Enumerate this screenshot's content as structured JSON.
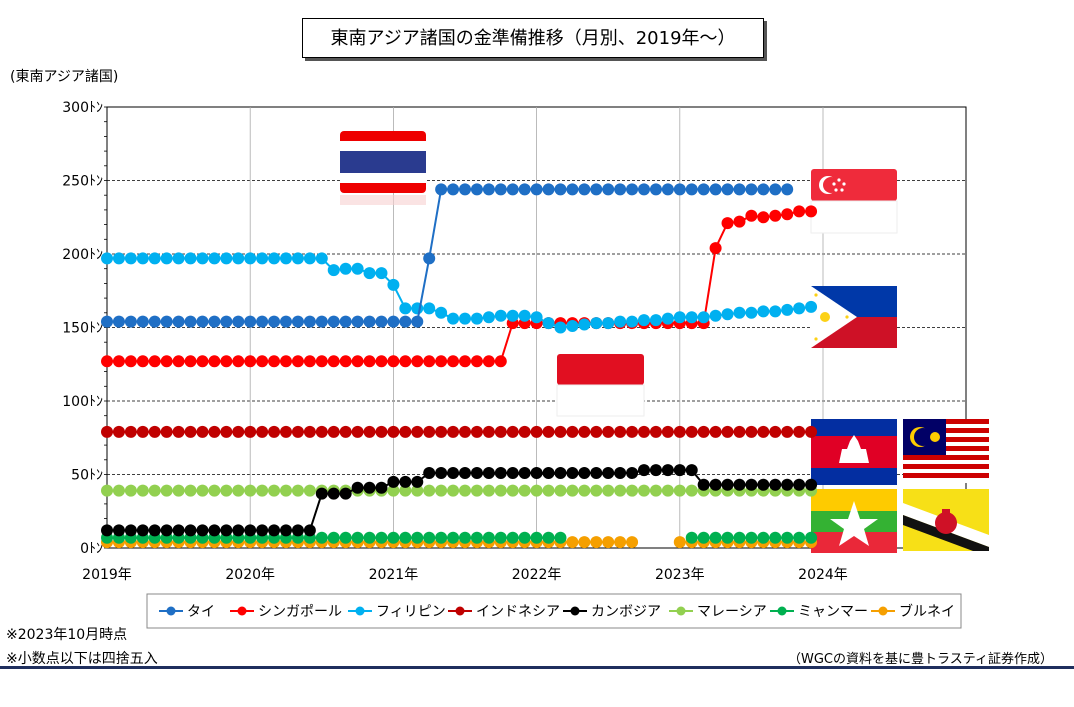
{
  "header": {
    "title": "東南アジア諸国の金準備推移（月別、2019年〜）"
  },
  "chart_data": {
    "type": "line",
    "ylabel": "(東南アジア諸国)",
    "yunit": "トン",
    "ylim": [
      0,
      300
    ],
    "yticks": [
      "0ﾄﾝ",
      "50ﾄﾝ",
      "100ﾄﾝ",
      "150ﾄﾝ",
      "200ﾄﾝ",
      "250ﾄﾝ",
      "300ﾄﾝ"
    ],
    "ytick_values": [
      0,
      50,
      100,
      150,
      200,
      250,
      300
    ],
    "xlim": [
      "2019-01",
      "2024-12"
    ],
    "xticks": [
      "2019年",
      "2020年",
      "2021年",
      "2022年",
      "2023年",
      "2024年"
    ],
    "x_start": "2019-01",
    "grid": "horizontal-dashed and vertical-solid",
    "legend_position": "bottom",
    "series": [
      {
        "name": "タイ",
        "color": "#1f6fc5",
        "segments": [
          [
            0,
            154,
            154,
            154
          ],
          [
            27,
            197,
            197
          ],
          [
            28,
            244,
            244,
            244
          ]
        ],
        "values": [
          154,
          154,
          154,
          154,
          154,
          154,
          154,
          154,
          154,
          154,
          154,
          154,
          154,
          154,
          154,
          154,
          154,
          154,
          154,
          154,
          154,
          154,
          154,
          154,
          154,
          154,
          154,
          197,
          244,
          244,
          244,
          244,
          244,
          244,
          244,
          244,
          244,
          244,
          244,
          244,
          244,
          244,
          244,
          244,
          244,
          244,
          244,
          244,
          244,
          244,
          244,
          244,
          244,
          244,
          244,
          244,
          244,
          244
        ]
      },
      {
        "name": "シンガポール",
        "color": "#ff0000",
        "values": [
          127,
          127,
          127,
          127,
          127,
          127,
          127,
          127,
          127,
          127,
          127,
          127,
          127,
          127,
          127,
          127,
          127,
          127,
          127,
          127,
          127,
          127,
          127,
          127,
          127,
          127,
          127,
          127,
          127,
          127,
          127,
          127,
          127,
          127,
          153,
          153,
          153,
          153,
          153,
          153,
          153,
          153,
          153,
          153,
          153,
          153,
          153,
          153,
          153,
          153,
          153,
          204,
          221,
          222,
          226,
          225,
          226,
          227,
          229,
          229
        ]
      },
      {
        "name": "フィリピン",
        "color": "#00b0f0",
        "values": [
          197,
          197,
          197,
          197,
          197,
          197,
          197,
          197,
          197,
          197,
          197,
          197,
          197,
          197,
          197,
          197,
          197,
          197,
          197,
          189,
          190,
          190,
          187,
          187,
          179,
          163,
          163,
          163,
          160,
          156,
          156,
          156,
          157,
          158,
          158,
          158,
          157,
          153,
          150,
          151,
          152,
          153,
          153,
          154,
          154,
          155,
          155,
          156,
          157,
          157,
          157,
          158,
          159,
          160,
          160,
          161,
          161,
          162,
          163,
          164
        ]
      },
      {
        "name": "インドネシア",
        "color": "#c00000",
        "values": [
          79,
          79,
          79,
          79,
          79,
          79,
          79,
          79,
          79,
          79,
          79,
          79,
          79,
          79,
          79,
          79,
          79,
          79,
          79,
          79,
          79,
          79,
          79,
          79,
          79,
          79,
          79,
          79,
          79,
          79,
          79,
          79,
          79,
          79,
          79,
          79,
          79,
          79,
          79,
          79,
          79,
          79,
          79,
          79,
          79,
          79,
          79,
          79,
          79,
          79,
          79,
          79,
          79,
          79,
          79,
          79,
          79,
          79,
          79,
          79
        ]
      },
      {
        "name": "カンボジア",
        "color": "#000000",
        "values": [
          12,
          12,
          12,
          12,
          12,
          12,
          12,
          12,
          12,
          12,
          12,
          12,
          12,
          12,
          12,
          12,
          12,
          12,
          37,
          37,
          37,
          41,
          41,
          41,
          45,
          45,
          45,
          51,
          51,
          51,
          51,
          51,
          51,
          51,
          51,
          51,
          51,
          51,
          51,
          51,
          51,
          51,
          51,
          51,
          51,
          53,
          53,
          53,
          53,
          53,
          43,
          43,
          43,
          43,
          43,
          43,
          43,
          43,
          43,
          43
        ]
      },
      {
        "name": "マレーシア",
        "color": "#92d050",
        "values": [
          39,
          39,
          39,
          39,
          39,
          39,
          39,
          39,
          39,
          39,
          39,
          39,
          39,
          39,
          39,
          39,
          39,
          39,
          39,
          39,
          39,
          39,
          39,
          39,
          39,
          39,
          39,
          39,
          39,
          39,
          39,
          39,
          39,
          39,
          39,
          39,
          39,
          39,
          39,
          39,
          39,
          39,
          39,
          39,
          39,
          39,
          39,
          39,
          39,
          39,
          39,
          39,
          39,
          39,
          39,
          39,
          39,
          39,
          39,
          39
        ]
      },
      {
        "name": "ミャンマー",
        "color": "#00b050",
        "values": [
          7,
          7,
          7,
          7,
          7,
          7,
          7,
          7,
          7,
          7,
          7,
          7,
          7,
          7,
          7,
          7,
          7,
          7,
          7,
          7,
          7,
          7,
          7,
          7,
          7,
          7,
          7,
          7,
          7,
          7,
          7,
          7,
          7,
          7,
          7,
          7,
          7,
          7,
          7,
          null,
          null,
          null,
          null,
          null,
          null,
          null,
          null,
          null,
          null,
          7,
          7,
          7,
          7,
          7,
          7,
          7,
          7,
          7,
          7,
          7
        ]
      },
      {
        "name": "ブルネイ",
        "color": "#f59f00",
        "values": [
          4,
          4,
          4,
          4,
          4,
          4,
          4,
          4,
          4,
          4,
          4,
          4,
          4,
          4,
          4,
          4,
          4,
          4,
          4,
          4,
          4,
          4,
          4,
          4,
          4,
          4,
          4,
          4,
          4,
          4,
          4,
          4,
          4,
          4,
          4,
          4,
          4,
          4,
          4,
          4,
          4,
          4,
          4,
          4,
          4,
          null,
          null,
          null,
          4,
          4,
          4,
          4,
          4,
          4,
          4,
          4,
          4,
          4,
          4,
          4
        ]
      }
    ]
  },
  "notes": {
    "as_of": "※2023年10月時点",
    "rounding": "※小数点以下は四捨五入",
    "source": "（WGCの資料を基に豊トラスティ証券作成）"
  },
  "flags": [
    "thailand-flag",
    "singapore-flag",
    "philippines-flag",
    "indonesia-flag",
    "cambodia-flag",
    "malaysia-flag",
    "myanmar-flag",
    "brunei-flag"
  ]
}
